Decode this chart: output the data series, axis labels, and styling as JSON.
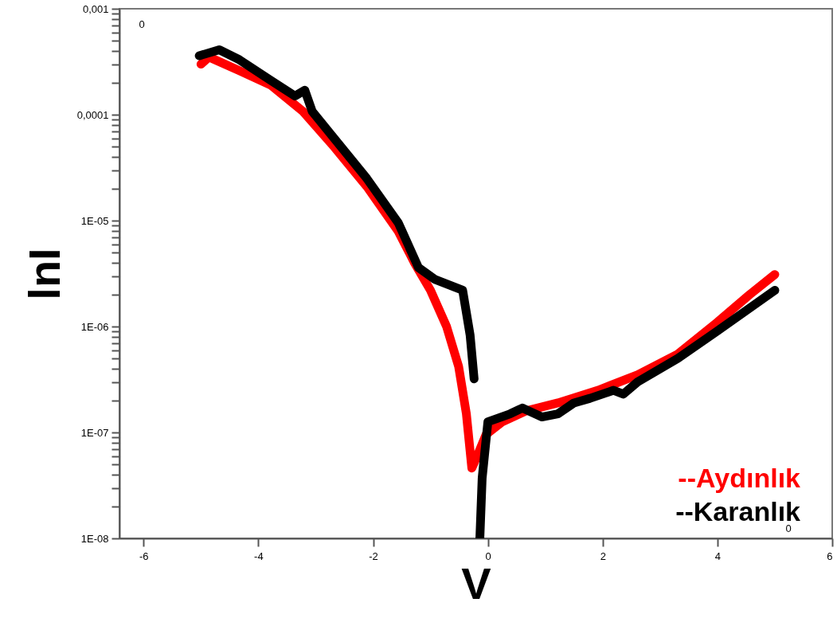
{
  "chart_data": {
    "type": "line",
    "xlabel": "V",
    "ylabel": "lnI",
    "log": "y",
    "xlim": [
      -6.42,
      6
    ],
    "xticks": [
      -6,
      -4,
      -2,
      0,
      2,
      4,
      6
    ],
    "ylim": [
      1e-08,
      0.001
    ],
    "yticks": [
      {
        "value": 1e-08,
        "label": "1E-08"
      },
      {
        "value": 1e-07,
        "label": "1E-07"
      },
      {
        "value": 1e-06,
        "label": "1E-06"
      },
      {
        "value": 1e-05,
        "label": "1E-05"
      },
      {
        "value": 0.0001,
        "label": "0,0001"
      },
      {
        "value": 0.001,
        "label": "0,001"
      },
      {
        "value": 2e-08,
        "label": null
      },
      {
        "value": 3e-08,
        "label": null
      },
      {
        "value": 4e-08,
        "label": null
      },
      {
        "value": 5e-08,
        "label": null
      },
      {
        "value": 6e-08,
        "label": null
      },
      {
        "value": 7e-08,
        "label": null
      },
      {
        "value": 8e-08,
        "label": null
      },
      {
        "value": 9e-08,
        "label": null
      },
      {
        "value": 2e-07,
        "label": null
      },
      {
        "value": 3e-07,
        "label": null
      },
      {
        "value": 4e-07,
        "label": null
      },
      {
        "value": 5e-07,
        "label": null
      },
      {
        "value": 6e-07,
        "label": null
      },
      {
        "value": 7e-07,
        "label": null
      },
      {
        "value": 8e-07,
        "label": null
      },
      {
        "value": 9e-07,
        "label": null
      },
      {
        "value": 2e-06,
        "label": null
      },
      {
        "value": 3e-06,
        "label": null
      },
      {
        "value": 4e-06,
        "label": null
      },
      {
        "value": 5e-06,
        "label": null
      },
      {
        "value": 6e-06,
        "label": null
      },
      {
        "value": 7e-06,
        "label": null
      },
      {
        "value": 8e-06,
        "label": null
      },
      {
        "value": 9e-06,
        "label": null
      },
      {
        "value": 2e-05,
        "label": null
      },
      {
        "value": 3e-05,
        "label": null
      },
      {
        "value": 4e-05,
        "label": null
      },
      {
        "value": 5e-05,
        "label": null
      },
      {
        "value": 6e-05,
        "label": null
      },
      {
        "value": 7e-05,
        "label": null
      },
      {
        "value": 8e-05,
        "label": null
      },
      {
        "value": 9e-05,
        "label": null
      },
      {
        "value": 0.0002,
        "label": null
      },
      {
        "value": 0.0003,
        "label": null
      },
      {
        "value": 0.0004,
        "label": null
      },
      {
        "value": 0.0005,
        "label": null
      },
      {
        "value": 0.0006,
        "label": null
      },
      {
        "value": 0.0007,
        "label": null
      },
      {
        "value": 0.0008,
        "label": null
      },
      {
        "value": 0.0009,
        "label": null
      }
    ],
    "grid": false,
    "legend": "bottom right",
    "marker": "none",
    "line_style": "solid",
    "annotations": [
      "0",
      "0"
    ],
    "series": [
      {
        "name": "--Aydınlık",
        "color": "#ff0000",
        "x": [
          -5,
          -4.86,
          -4.33,
          -3.78,
          -3.22,
          -2.67,
          -2.11,
          -1.56,
          -1.28,
          -1,
          -0.72,
          -0.51,
          -0.375,
          -0.28,
          -0.17,
          -0.03,
          0.25,
          0.67,
          1.22,
          1.92,
          2.61,
          3.31,
          4,
          4.56,
          5
        ],
        "values": [
          0.0003,
          0.00035,
          0.00026,
          0.00019,
          0.000107,
          4.9e-05,
          2.1e-05,
          7.9e-06,
          4e-06,
          2.2e-06,
          1e-06,
          4.2e-07,
          1.5e-07,
          4.6e-08,
          6.3e-08,
          9.6e-08,
          1.26e-07,
          1.6e-07,
          1.9e-07,
          2.5e-07,
          3.5e-07,
          5.5e-07,
          1.1e-06,
          2e-06,
          3.1e-06
        ]
      },
      {
        "name": "--Karanlık",
        "color": "#000000",
        "x": [
          -5.03,
          -4.68,
          -4.33,
          -3.78,
          -3.36,
          -3.19,
          -3.06,
          -2.67,
          -2.11,
          -1.56,
          -1.21,
          -0.93,
          -0.44,
          -0.31,
          -0.24,
          -0.19,
          -0.14,
          -0.1,
          0,
          0.39,
          0.6,
          0.94,
          1.22,
          1.5,
          1.78,
          2.19,
          2.36,
          2.61,
          3.31,
          4,
          5
        ],
        "values": [
          0.00036,
          0.00041,
          0.00033,
          0.00021,
          0.00015,
          0.00017,
          0.000107,
          5.9e-05,
          2.5e-05,
          9.5e-06,
          3.6e-06,
          2.8e-06,
          2.2e-06,
          8.3e-07,
          3.2e-07,
          null,
          1e-08,
          3.7e-08,
          1.26e-07,
          1.5e-07,
          1.7e-07,
          1.4e-07,
          1.5e-07,
          1.9e-07,
          2.1e-07,
          2.5e-07,
          2.3e-07,
          3e-07,
          5e-07,
          9.1e-07,
          2.2e-06
        ]
      }
    ]
  }
}
